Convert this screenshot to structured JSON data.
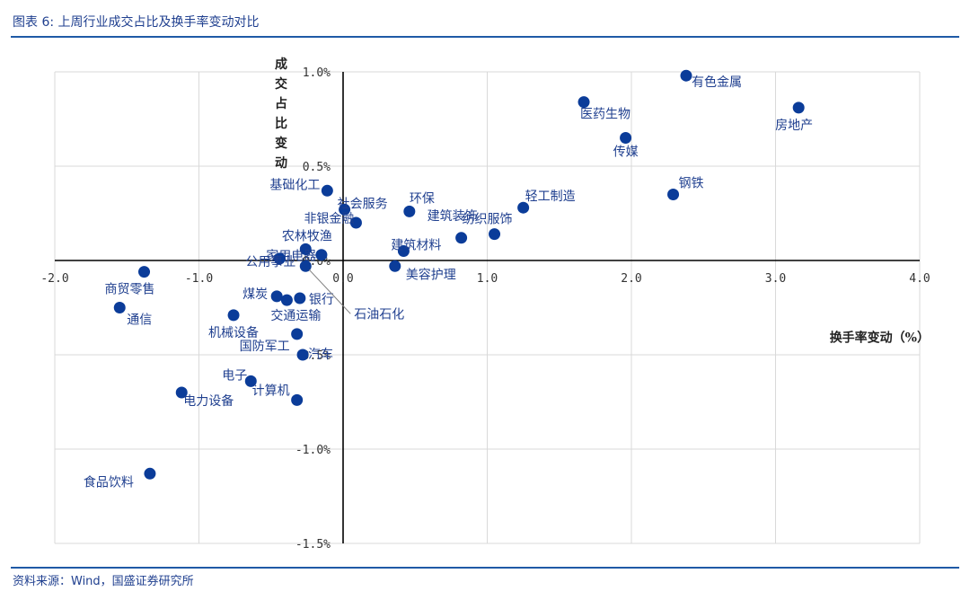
{
  "header": {
    "title": "图表 6: 上周行业成交占比及换手率变动对比"
  },
  "footer": {
    "source": "资料来源：Wind，国盛证券研究所"
  },
  "chart_data": {
    "type": "scatter",
    "xlabel": "换手率变动（%）",
    "ylabel": "成交占比变动",
    "xlim": [
      -2.0,
      4.0
    ],
    "ylim": [
      -1.5,
      1.0
    ],
    "x_ticks": [
      "-2.0",
      "-1.0",
      "0.0",
      "1.0",
      "2.0",
      "3.0",
      "4.0"
    ],
    "y_ticks": [
      "1.0%",
      "0.5%",
      "0.0%",
      "-0.5%",
      "-1.0%",
      "-1.5%"
    ],
    "grid": true,
    "color": "#0b3c99",
    "points": [
      {
        "label": "有色金属",
        "x": 2.38,
        "y": 0.98
      },
      {
        "label": "房地产",
        "x": 3.16,
        "y": 0.81
      },
      {
        "label": "医药生物",
        "x": 1.67,
        "y": 0.84
      },
      {
        "label": "传媒",
        "x": 1.96,
        "y": 0.65
      },
      {
        "label": "钢铁",
        "x": 2.29,
        "y": 0.35
      },
      {
        "label": "轻工制造",
        "x": 1.25,
        "y": 0.28
      },
      {
        "label": "纺织服饰",
        "x": 1.05,
        "y": 0.14
      },
      {
        "label": "建筑装饰",
        "x": 0.82,
        "y": 0.12
      },
      {
        "label": "建筑材料",
        "x": 0.42,
        "y": 0.05
      },
      {
        "label": "美容护理",
        "x": 0.36,
        "y": -0.03
      },
      {
        "label": "环保",
        "x": 0.46,
        "y": 0.26
      },
      {
        "label": "社会服务",
        "x": 0.01,
        "y": 0.27
      },
      {
        "label": "基础化工",
        "x": -0.11,
        "y": 0.37
      },
      {
        "label": "非银金融",
        "x": 0.09,
        "y": 0.2
      },
      {
        "label": "农林牧渔",
        "x": -0.15,
        "y": 0.03
      },
      {
        "label": "家用电器",
        "x": -0.26,
        "y": 0.06
      },
      {
        "label": "公用事业",
        "x": -0.44,
        "y": 0.01
      },
      {
        "label": "石油石化",
        "x": -0.26,
        "y": -0.03
      },
      {
        "label": "商贸零售",
        "x": -1.38,
        "y": -0.06
      },
      {
        "label": "通信",
        "x": -1.55,
        "y": -0.25
      },
      {
        "label": "煤炭",
        "x": -0.46,
        "y": -0.19
      },
      {
        "label": "银行",
        "x": -0.3,
        "y": -0.2
      },
      {
        "label": "交通运输",
        "x": -0.39,
        "y": -0.21
      },
      {
        "label": "机械设备",
        "x": -0.76,
        "y": -0.29
      },
      {
        "label": "国防军工",
        "x": -0.32,
        "y": -0.39
      },
      {
        "label": "汽车",
        "x": -0.28,
        "y": -0.5
      },
      {
        "label": "电子",
        "x": -0.64,
        "y": -0.64
      },
      {
        "label": "计算机",
        "x": -0.32,
        "y": -0.74
      },
      {
        "label": "电力设备",
        "x": -1.12,
        "y": -0.7
      },
      {
        "label": "食品饮料",
        "x": -1.34,
        "y": -1.13
      }
    ]
  }
}
